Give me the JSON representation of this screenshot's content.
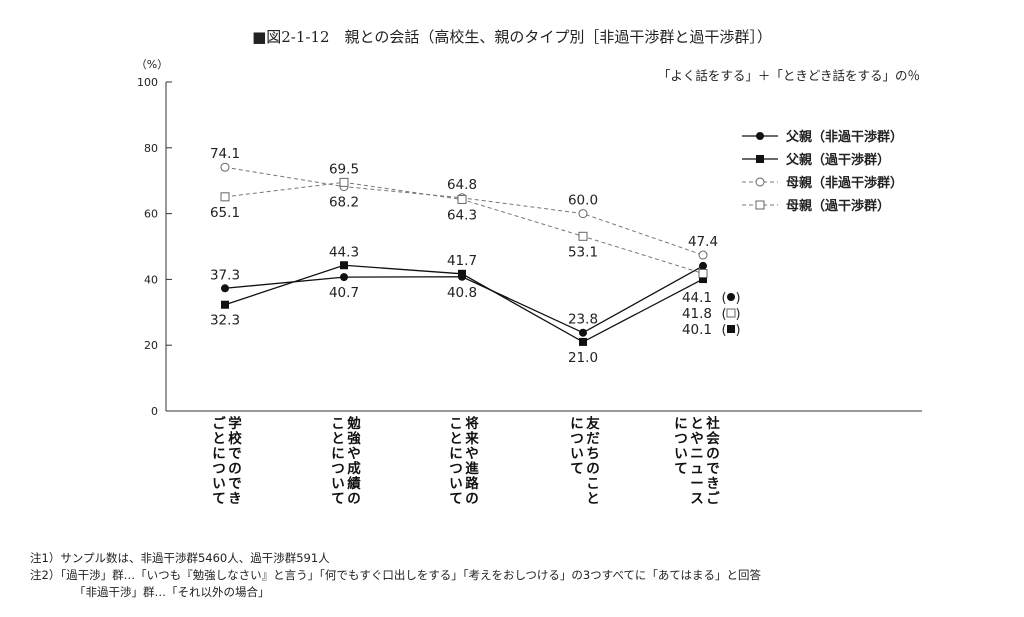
{
  "title": "■図2-1-12　親との会話（高校生、親のタイプ別［非過干渉群と過干渉群］）",
  "chart_data": {
    "type": "line",
    "title": "■図2-1-12　親との会話（高校生、親のタイプ別［非過干渉群と過干渉群］）",
    "subtitle": "「よく話をする」＋「ときどき話をする」の％",
    "ylabel": "（%）",
    "ylim": [
      0,
      100
    ],
    "yticks": [
      "0",
      "20",
      "40",
      "60",
      "80",
      "100"
    ],
    "categories": [
      [
        "学校でのでき",
        "ごとについて"
      ],
      [
        "勉強や成績の",
        "ことについて"
      ],
      [
        "将来や進路の",
        "ことについて"
      ],
      [
        "友だちのこと",
        "について"
      ],
      [
        "社会のできご",
        "とやニュース",
        "について"
      ]
    ],
    "series": [
      {
        "name": "父親（非過干渉群）",
        "marker": "filled-circle",
        "dash": "solid",
        "values": [
          37.3,
          40.7,
          40.8,
          23.8,
          44.1
        ],
        "labels": [
          "37.3",
          "40.7",
          "40.8",
          "23.8",
          "44.1"
        ]
      },
      {
        "name": "父親（過干渉群）",
        "marker": "filled-square",
        "dash": "solid",
        "values": [
          32.3,
          44.3,
          41.7,
          21.0,
          40.1
        ],
        "labels": [
          "32.3",
          "44.3",
          "41.7",
          "21.0",
          "40.1"
        ]
      },
      {
        "name": "母親（非過干渉群）",
        "marker": "open-circle",
        "dash": "dashed",
        "values": [
          74.1,
          68.2,
          64.8,
          60.0,
          47.4
        ],
        "labels": [
          "74.1",
          "68.2",
          "64.8",
          "60.0",
          "47.4"
        ]
      },
      {
        "name": "母親（過干渉群）",
        "marker": "open-square",
        "dash": "dashed",
        "values": [
          65.1,
          69.5,
          64.3,
          53.1,
          41.8
        ],
        "labels": [
          "65.1",
          "69.5",
          "64.3",
          "53.1",
          "41.8"
        ]
      }
    ],
    "legend": "top-right"
  },
  "notes": {
    "note1": "注1）サンプル数は、非過干渉群5460人、過干渉群591人",
    "note2": "注2）「過干渉」群…「いつも『勉強しなさい』と言う」「何でもすぐ口出しをする」「考えをおしつける」の3つすべてに「あてはまる」と回答",
    "note3": "「非過干渉」群…「それ以外の場合」"
  }
}
